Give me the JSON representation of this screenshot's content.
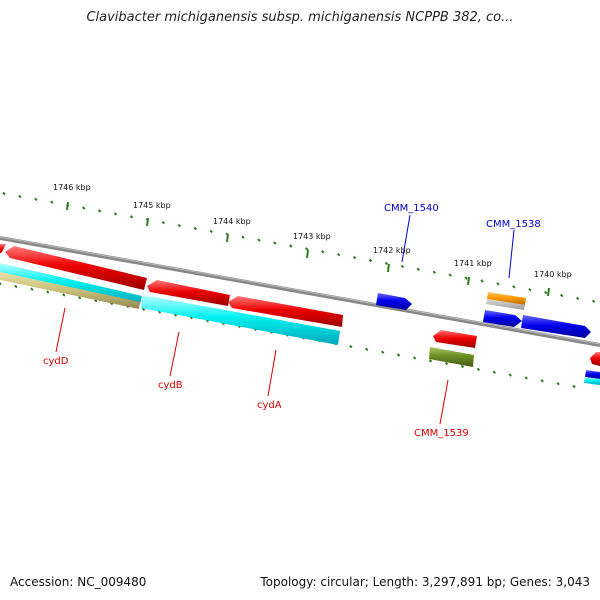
{
  "title": "Clavibacter michiganensis subsp. michiganensis NCPPB 382, co...",
  "footer": {
    "accession": "Accession: NC_009480",
    "summary": "Topology: circular; Length: 3,297,891 bp; Genes: 3,043"
  },
  "scale_labels": [
    "1746 kbp",
    "1745 kbp",
    "1744 kbp",
    "1743 kbp",
    "1742 kbp",
    "1741 kbp",
    "1740 kbp"
  ],
  "gene_labels": [
    {
      "text": "cydD",
      "color": "#dd0000"
    },
    {
      "text": "cydB",
      "color": "#dd0000"
    },
    {
      "text": "cydA",
      "color": "#dd0000"
    },
    {
      "text": "CMM_1539",
      "color": "#dd0000"
    },
    {
      "text": "CMM_1540",
      "color": "#0000cc"
    },
    {
      "text": "CMM_1538",
      "color": "#0000cc"
    }
  ],
  "colors": {
    "red": "#ee0000",
    "blue": "#0000ee",
    "cyan": "#00ffff",
    "orange": "#ff9900",
    "olive": "#6b8e23",
    "khaki": "#c8bf78",
    "backbone": "#808080",
    "tick": "#2e7d1e"
  }
}
